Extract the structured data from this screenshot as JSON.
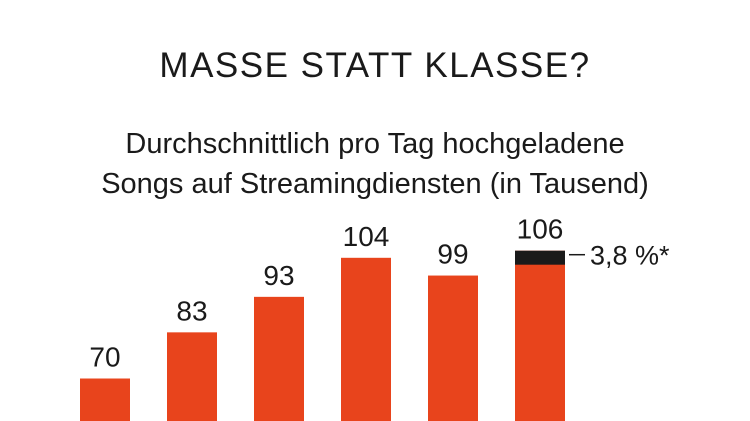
{
  "title": "MASSE STATT KLASSE?",
  "subtitle_lines": [
    "Durchschnittlich pro Tag hochgeladene",
    "Songs auf Streamingdiensten (in Tausend)"
  ],
  "colors": {
    "bar": "#e8441c",
    "highlight": "#1a1a1a",
    "text": "#1a1a1a"
  },
  "chart_data": {
    "type": "bar",
    "title": "MASSE STATT KLASSE?",
    "subtitle": "Durchschnittlich pro Tag hochgeladene Songs auf Streamingdiensten (in Tausend)",
    "categories": [
      "",
      "",
      "",
      "",
      "",
      ""
    ],
    "values": [
      70,
      83,
      93,
      104,
      99,
      106
    ],
    "data_labels": [
      "70",
      "83",
      "93",
      "104",
      "99",
      "106"
    ],
    "highlight": {
      "bar_index": 5,
      "share_percent": 3.8,
      "label": "3,8 %*"
    },
    "ylim": [
      60,
      110
    ],
    "grid": false,
    "legend": "none"
  }
}
